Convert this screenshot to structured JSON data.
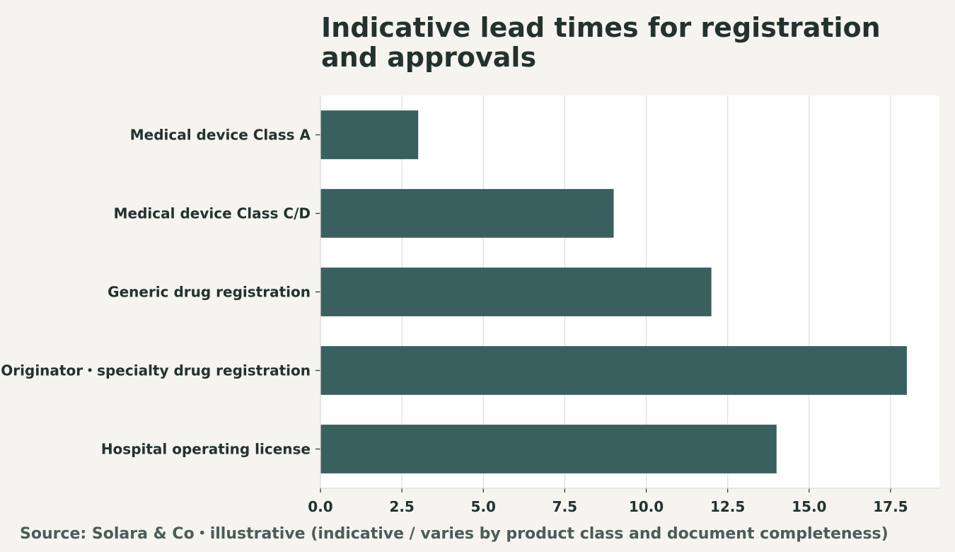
{
  "colors": {
    "page_background": "#f5f4ef",
    "plot_background": "#ffffff",
    "bar": "#3a5f5f",
    "grid": "#dcdcdc",
    "text": "#24312f",
    "note": "#4d5b59"
  },
  "chart_data": {
    "type": "bar",
    "orientation": "horizontal",
    "title": "Indicative lead times for registration and approvals",
    "xlabel": "",
    "ylabel": "",
    "categories": [
      "Medical device Class A",
      "Medical device Class C/D",
      "Generic drug registration",
      "Originator・specialty drug registration",
      "Hospital operating license"
    ],
    "values": [
      3,
      9,
      12,
      18,
      14
    ],
    "xlim": [
      0,
      19
    ],
    "xticks": [
      "0.0",
      "2.5",
      "5.0",
      "7.5",
      "10.0",
      "12.5",
      "15.0",
      "17.5"
    ],
    "grid": "vertical",
    "legend": "none"
  },
  "source_note": "Source: Solara & Co・illustrative (indicative / varies by product class and document completeness)"
}
